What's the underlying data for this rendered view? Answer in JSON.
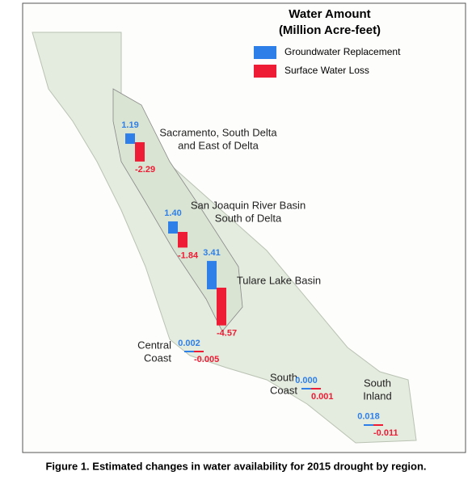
{
  "legend": {
    "title_lines": [
      "Water Amount",
      "(Million Acre-feet)"
    ],
    "items": [
      {
        "name": "Groundwater Replacement",
        "color": "#2f7fe8"
      },
      {
        "name": "Surface Water Loss",
        "color": "#ee1c34"
      }
    ]
  },
  "regions": [
    {
      "name_lines": [
        "Sacramento, South Delta",
        "and East of Delta"
      ],
      "values": [
        1.19,
        -2.29
      ],
      "value_labels": [
        "1.19",
        "-2.29"
      ]
    },
    {
      "name_lines": [
        "San Joaquin River Basin",
        "South of Delta"
      ],
      "values": [
        1.4,
        -1.84
      ],
      "value_labels": [
        "1.40",
        "-1.84"
      ]
    },
    {
      "name_lines": [
        "Tulare Lake Basin"
      ],
      "values": [
        3.41,
        -4.57
      ],
      "value_labels": [
        "3.41",
        "-4.57"
      ]
    },
    {
      "name_lines": [
        "Central",
        "Coast"
      ],
      "values": [
        0.002,
        -0.005
      ],
      "value_labels": [
        "0.002",
        "-0.005"
      ]
    },
    {
      "name_lines": [
        "South",
        "Coast"
      ],
      "values": [
        0,
        0.001
      ],
      "value_labels": [
        "0.000",
        "0.001"
      ]
    },
    {
      "name_lines": [
        "South",
        "Inland"
      ],
      "values": [
        0.018,
        -0.011
      ],
      "value_labels": [
        "0.018",
        "-0.011"
      ]
    }
  ],
  "caption": "Figure 1. Estimated changes in water availability for 2015 drought by region."
}
